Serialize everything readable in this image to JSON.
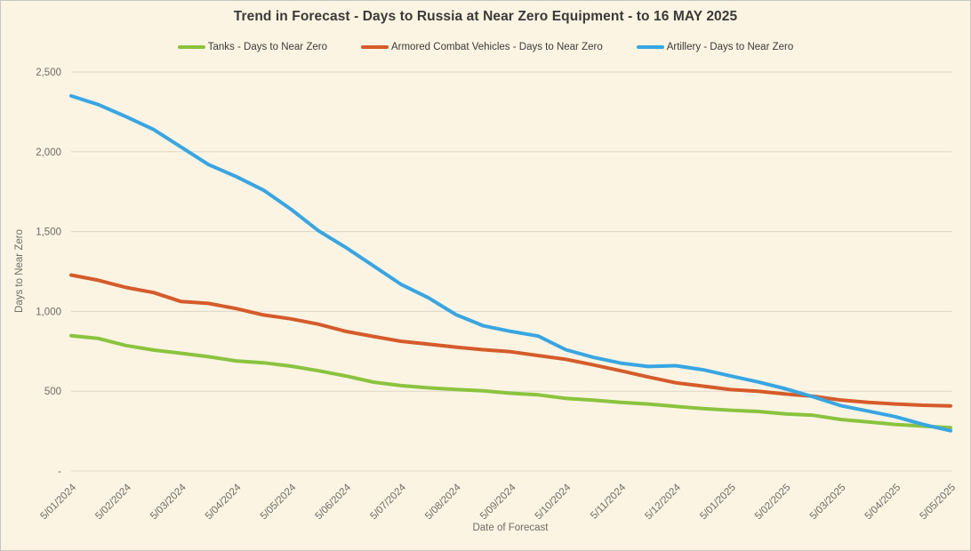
{
  "colors": {
    "background": "#FBF4E2",
    "frame_border": "#C6C6C6",
    "gridline": "#DBD7CA",
    "title_text": "#3B3A38",
    "axis_text": "#6E6C66",
    "tanks_green": "#8AC43F",
    "acv_orange": "#D55B2B",
    "artillery_blue": "#38A6E3"
  },
  "chart_data": {
    "type": "line",
    "title": "Trend in Forecast - Days to Russia at Near Zero Equipment - to 16 MAY 2025",
    "xlabel": "Date of Forecast",
    "ylabel": "Days to Near Zero",
    "legend_position": "top",
    "grid": "horizontal",
    "ylim": [
      0,
      2500
    ],
    "y_ticks": [
      {
        "label": "-",
        "value": 0
      },
      {
        "label": "500",
        "value": 500
      },
      {
        "label": "1,000",
        "value": 1000
      },
      {
        "label": "1,500",
        "value": 1500
      },
      {
        "label": "2,000",
        "value": 2000
      },
      {
        "label": "2,500",
        "value": 2500
      }
    ],
    "x_tick_labels": [
      "5/01/2024",
      "5/02/2024",
      "5/03/2024",
      "5/04/2024",
      "5/05/2024",
      "5/06/2024",
      "5/07/2024",
      "5/08/2024",
      "5/09/2024",
      "5/10/2024",
      "5/11/2024",
      "5/12/2024",
      "5/01/2025",
      "5/02/2025",
      "5/03/2025",
      "5/04/2025",
      "5/05/2025"
    ],
    "x_sampling_note": "series values are sampled evenly at 2 points per tick interval (33 points spanning 5/01/2024 to 5/05/2025); values estimated from gridlines",
    "series": [
      {
        "name": "Tanks - Days to Near Zero",
        "slug": "tanks",
        "color": "#8AC43F",
        "values": [
          848,
          830,
          786,
          758,
          738,
          716,
          690,
          678,
          657,
          628,
          595,
          557,
          535,
          521,
          511,
          503,
          487,
          477,
          455,
          444,
          430,
          420,
          405,
          391,
          381,
          373,
          358,
          349,
          323,
          308,
          292,
          281,
          271
        ]
      },
      {
        "name": "Armored Combat Vehicles - Days to Near Zero",
        "slug": "armored-combat-vehicles",
        "color": "#D55B2B",
        "values": [
          1228,
          1195,
          1150,
          1118,
          1062,
          1050,
          1018,
          978,
          953,
          920,
          875,
          843,
          813,
          795,
          776,
          760,
          747,
          723,
          700,
          665,
          628,
          589,
          553,
          532,
          510,
          500,
          482,
          468,
          445,
          430,
          420,
          412,
          408
        ]
      },
      {
        "name": "Artillery - Days to Near Zero",
        "slug": "artillery",
        "color": "#38A6E3",
        "values": [
          2350,
          2295,
          2220,
          2140,
          2030,
          1920,
          1845,
          1760,
          1640,
          1505,
          1400,
          1285,
          1170,
          1085,
          980,
          910,
          875,
          845,
          760,
          712,
          676,
          655,
          660,
          634,
          595,
          558,
          515,
          465,
          410,
          375,
          340,
          292,
          252
        ]
      }
    ]
  }
}
